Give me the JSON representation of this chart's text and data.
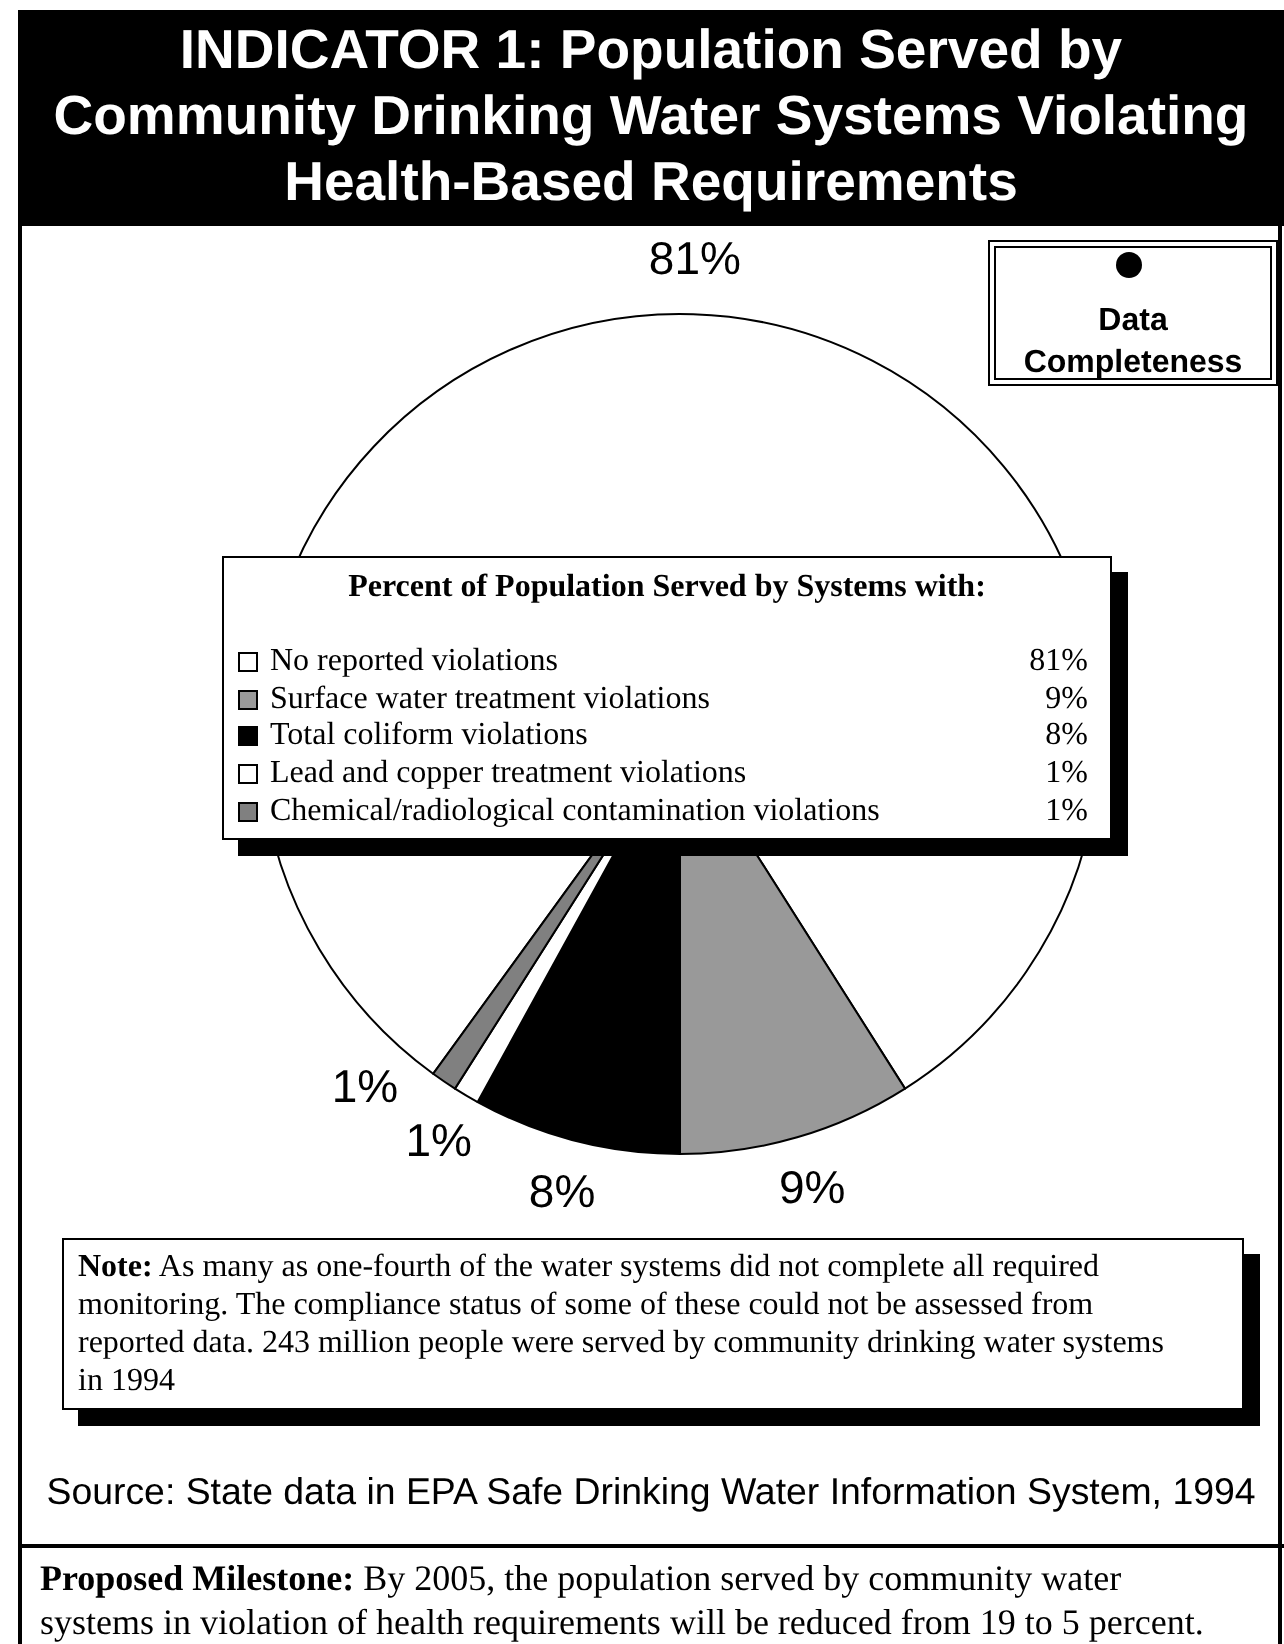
{
  "chart_data": {
    "type": "pie",
    "title": "INDICATOR 1: Population Served by Community Drinking Water Systems Violating Health-Based Requirements",
    "legend_title": "Percent of Population Served by Systems with:",
    "legend": "center",
    "categories": [
      "No reported violations",
      "Surface water treatment violations",
      "Total coliform violations",
      "Lead and copper treatment violations",
      "Chemical/radiological contamination violations"
    ],
    "values": [
      81,
      9,
      8,
      1,
      1
    ],
    "value_labels": [
      "81%",
      "9%",
      "8%",
      "1%",
      "1%"
    ],
    "colors": [
      "#ffffff",
      "#999999",
      "#000000",
      "#ffffff",
      "#808080"
    ],
    "annotations": [
      "Data Completeness",
      "Note: As many as one-fourth of the water systems did not complete all required monitoring. The compliance status of some of these could not be assessed from reported data. 243 million people were served by community drinking water systems in 1994",
      "Source: State data in EPA Safe Drinking Water Information System, 1994",
      "Proposed Milestone: By 2005, the population served by community water systems in violation of health requirements will be reduced from 19 to 5 percent."
    ]
  }
}
